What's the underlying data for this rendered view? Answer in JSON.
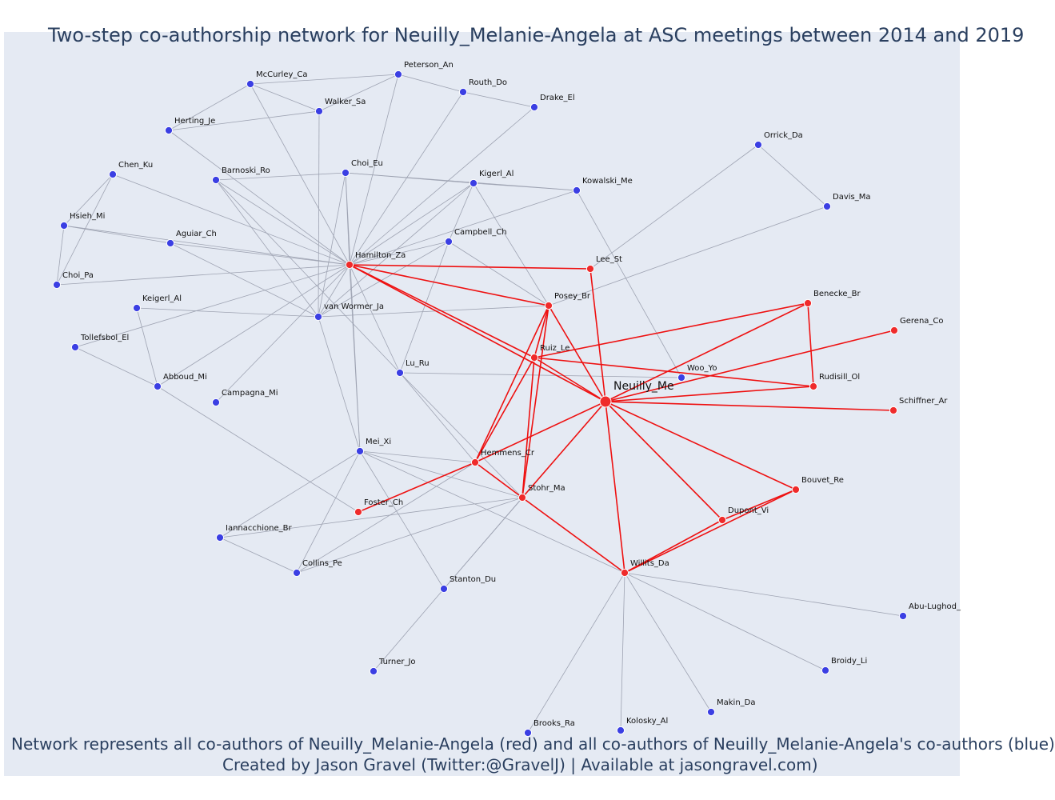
{
  "title": "Two-step co-authorship network for Neuilly_Melanie-Angela at ASC meetings between 2014 and 2019",
  "caption_line1": "Network represents all co-authors of Neuilly_Melanie-Angela (red) and all co-authors of Neuilly_Melanie-Angela's co-authors (blue)",
  "caption_line2": "Created by Jason Gravel (Twitter:@GravelJ) | Available at jasongravel.com)",
  "colors": {
    "plot_background": "#e5eaf3",
    "coauthor_node": "#ef2b2b",
    "second_step_node": "#3b3fe3",
    "coauthor_edge": "#ee1111",
    "second_step_edge": "#9ea3b2",
    "title_text": "#2a3f5f"
  },
  "chart_data": {
    "type": "network",
    "ego": "Neuilly_Me",
    "nodes": [
      {
        "id": "Neuilly_Me",
        "group": "ego"
      },
      {
        "id": "Hamilton_Za",
        "group": "coauthor"
      },
      {
        "id": "Lee_St",
        "group": "coauthor"
      },
      {
        "id": "Posey_Br",
        "group": "coauthor"
      },
      {
        "id": "Ruiz_Le",
        "group": "coauthor"
      },
      {
        "id": "Benecke_Br",
        "group": "coauthor"
      },
      {
        "id": "Gerena_Co",
        "group": "coauthor"
      },
      {
        "id": "Rudisill_Ol",
        "group": "coauthor"
      },
      {
        "id": "Schiffner_Ar",
        "group": "coauthor"
      },
      {
        "id": "Hemmens_Cr",
        "group": "coauthor"
      },
      {
        "id": "Stohr_Ma",
        "group": "coauthor"
      },
      {
        "id": "Foster_Ch",
        "group": "coauthor"
      },
      {
        "id": "Bouvet_Re",
        "group": "coauthor"
      },
      {
        "id": "Dupont_Vi",
        "group": "coauthor"
      },
      {
        "id": "Willits_Da",
        "group": "coauthor"
      },
      {
        "id": "McCurley_Ca",
        "group": "second"
      },
      {
        "id": "Peterson_An",
        "group": "second"
      },
      {
        "id": "Routh_Do",
        "group": "second"
      },
      {
        "id": "Walker_Sa",
        "group": "second"
      },
      {
        "id": "Drake_El",
        "group": "second"
      },
      {
        "id": "Herting_Je",
        "group": "second"
      },
      {
        "id": "Orrick_Da",
        "group": "second"
      },
      {
        "id": "Chen_Ku",
        "group": "second"
      },
      {
        "id": "Barnoski_Ro",
        "group": "second"
      },
      {
        "id": "Choi_Eu",
        "group": "second"
      },
      {
        "id": "Kigerl_Al",
        "group": "second"
      },
      {
        "id": "Kowalski_Me",
        "group": "second"
      },
      {
        "id": "Davis_Ma",
        "group": "second"
      },
      {
        "id": "Hsieh_Mi",
        "group": "second"
      },
      {
        "id": "Aguiar_Ch",
        "group": "second"
      },
      {
        "id": "Campbell_Ch",
        "group": "second"
      },
      {
        "id": "Choi_Pa",
        "group": "second"
      },
      {
        "id": "Keigerl_Al",
        "group": "second"
      },
      {
        "id": "van Wormer_Ja",
        "group": "second"
      },
      {
        "id": "Tollefsbol_El",
        "group": "second"
      },
      {
        "id": "Lu_Ru",
        "group": "second"
      },
      {
        "id": "Woo_Yo",
        "group": "second"
      },
      {
        "id": "Abboud_Mi",
        "group": "second"
      },
      {
        "id": "Campagna_Mi",
        "group": "second"
      },
      {
        "id": "Mei_Xi",
        "group": "second"
      },
      {
        "id": "Iannacchione_Br",
        "group": "second"
      },
      {
        "id": "Collins_Pe",
        "group": "second"
      },
      {
        "id": "Stanton_Du",
        "group": "second"
      },
      {
        "id": "Abu-Lughod_",
        "group": "second"
      },
      {
        "id": "Turner_Jo",
        "group": "second"
      },
      {
        "id": "Broidy_Li",
        "group": "second"
      },
      {
        "id": "Makin_Da",
        "group": "second"
      },
      {
        "id": "Brooks_Ra",
        "group": "second"
      },
      {
        "id": "Kolosky_Al",
        "group": "second"
      }
    ],
    "edges_red": [
      [
        "Neuilly_Me",
        "Hamilton_Za"
      ],
      [
        "Neuilly_Me",
        "Lee_St"
      ],
      [
        "Neuilly_Me",
        "Posey_Br"
      ],
      [
        "Neuilly_Me",
        "Ruiz_Le"
      ],
      [
        "Neuilly_Me",
        "Benecke_Br"
      ],
      [
        "Neuilly_Me",
        "Gerena_Co"
      ],
      [
        "Neuilly_Me",
        "Rudisill_Ol"
      ],
      [
        "Neuilly_Me",
        "Schiffner_Ar"
      ],
      [
        "Neuilly_Me",
        "Hemmens_Cr"
      ],
      [
        "Neuilly_Me",
        "Stohr_Ma"
      ],
      [
        "Neuilly_Me",
        "Bouvet_Re"
      ],
      [
        "Neuilly_Me",
        "Dupont_Vi"
      ],
      [
        "Neuilly_Me",
        "Willits_Da"
      ],
      [
        "Hamilton_Za",
        "Lee_St"
      ],
      [
        "Hamilton_Za",
        "Posey_Br"
      ],
      [
        "Hamilton_Za",
        "Ruiz_Le"
      ],
      [
        "Posey_Br",
        "Hemmens_Cr"
      ],
      [
        "Posey_Br",
        "Stohr_Ma"
      ],
      [
        "Posey_Br",
        "Ruiz_Le"
      ],
      [
        "Ruiz_Le",
        "Benecke_Br"
      ],
      [
        "Ruiz_Le",
        "Rudisill_Ol"
      ],
      [
        "Ruiz_Le",
        "Hemmens_Cr"
      ],
      [
        "Ruiz_Le",
        "Stohr_Ma"
      ],
      [
        "Benecke_Br",
        "Rudisill_Ol"
      ],
      [
        "Hemmens_Cr",
        "Foster_Ch"
      ],
      [
        "Hemmens_Cr",
        "Stohr_Ma"
      ],
      [
        "Stohr_Ma",
        "Willits_Da"
      ],
      [
        "Willits_Da",
        "Dupont_Vi"
      ],
      [
        "Willits_Da",
        "Bouvet_Re"
      ],
      [
        "Dupont_Vi",
        "Bouvet_Re"
      ]
    ],
    "edges_gray": [
      [
        "McCurley_Ca",
        "Peterson_An"
      ],
      [
        "McCurley_Ca",
        "Walker_Sa"
      ],
      [
        "McCurley_Ca",
        "Herting_Je"
      ],
      [
        "McCurley_Ca",
        "Hamilton_Za"
      ],
      [
        "Peterson_An",
        "Walker_Sa"
      ],
      [
        "Peterson_An",
        "Routh_Do"
      ],
      [
        "Peterson_An",
        "Hamilton_Za"
      ],
      [
        "Routh_Do",
        "Drake_El"
      ],
      [
        "Routh_Do",
        "Hamilton_Za"
      ],
      [
        "Walker_Sa",
        "Herting_Je"
      ],
      [
        "Walker_Sa",
        "van Wormer_Ja"
      ],
      [
        "Drake_El",
        "Hamilton_Za"
      ],
      [
        "Herting_Je",
        "Hamilton_Za"
      ],
      [
        "Chen_Ku",
        "Hsieh_Mi"
      ],
      [
        "Chen_Ku",
        "Choi_Pa"
      ],
      [
        "Chen_Ku",
        "Hamilton_Za"
      ],
      [
        "Hsieh_Mi",
        "Choi_Pa"
      ],
      [
        "Hsieh_Mi",
        "Hamilton_Za"
      ],
      [
        "Choi_Pa",
        "Hamilton_Za"
      ],
      [
        "Barnoski_Ro",
        "Choi_Eu"
      ],
      [
        "Barnoski_Ro",
        "Hamilton_Za"
      ],
      [
        "Barnoski_Ro",
        "van Wormer_Ja"
      ],
      [
        "Barnoski_Ro",
        "Lu_Ru"
      ],
      [
        "Choi_Eu",
        "Kigerl_Al"
      ],
      [
        "Choi_Eu",
        "Hamilton_Za"
      ],
      [
        "Choi_Eu",
        "van Wormer_Ja"
      ],
      [
        "Choi_Eu",
        "Mei_Xi"
      ],
      [
        "Kigerl_Al",
        "Kowalski_Me"
      ],
      [
        "Kigerl_Al",
        "Hamilton_Za"
      ],
      [
        "Kigerl_Al",
        "Posey_Br"
      ],
      [
        "Kigerl_Al",
        "Campbell_Ch"
      ],
      [
        "Kigerl_Al",
        "van Wormer_Ja"
      ],
      [
        "Kowalski_Me",
        "Hamilton_Za"
      ],
      [
        "Kowalski_Me",
        "Woo_Yo"
      ],
      [
        "Choi_Eu",
        "Kowalski_Me"
      ],
      [
        "Aguiar_Ch",
        "Hamilton_Za"
      ],
      [
        "Aguiar_Ch",
        "van Wormer_Ja"
      ],
      [
        "Aguiar_Ch",
        "Hsieh_Mi"
      ],
      [
        "Campbell_Ch",
        "Hamilton_Za"
      ],
      [
        "Campbell_Ch",
        "Posey_Br"
      ],
      [
        "Campbell_Ch",
        "Lu_Ru"
      ],
      [
        "Campbell_Ch",
        "van Wormer_Ja"
      ],
      [
        "Keigerl_Al",
        "van Wormer_Ja"
      ],
      [
        "Keigerl_Al",
        "Abboud_Mi"
      ],
      [
        "Tollefsbol_El",
        "Hamilton_Za"
      ],
      [
        "Tollefsbol_El",
        "Abboud_Mi"
      ],
      [
        "Abboud_Mi",
        "Hamilton_Za"
      ],
      [
        "Abboud_Mi",
        "Foster_Ch"
      ],
      [
        "Campagna_Mi",
        "Hamilton_Za"
      ],
      [
        "van Wormer_Ja",
        "Hamilton_Za"
      ],
      [
        "van Wormer_Ja",
        "Posey_Br"
      ],
      [
        "van Wormer_Ja",
        "Mei_Xi"
      ],
      [
        "Lu_Ru",
        "Hamilton_Za"
      ],
      [
        "Lu_Ru",
        "Woo_Yo"
      ],
      [
        "Lu_Ru",
        "Hemmens_Cr"
      ],
      [
        "Lu_Ru",
        "Stohr_Ma"
      ],
      [
        "Mei_Xi",
        "Hamilton_Za"
      ],
      [
        "Mei_Xi",
        "Hemmens_Cr"
      ],
      [
        "Mei_Xi",
        "Stohr_Ma"
      ],
      [
        "Mei_Xi",
        "Willits_Da"
      ],
      [
        "Mei_Xi",
        "Iannacchione_Br"
      ],
      [
        "Mei_Xi",
        "Collins_Pe"
      ],
      [
        "Mei_Xi",
        "Stanton_Du"
      ],
      [
        "Iannacchione_Br",
        "Stohr_Ma"
      ],
      [
        "Iannacchione_Br",
        "Collins_Pe"
      ],
      [
        "Collins_Pe",
        "Stohr_Ma"
      ],
      [
        "Collins_Pe",
        "Hemmens_Cr"
      ],
      [
        "Stanton_Du",
        "Stohr_Ma"
      ],
      [
        "Stanton_Du",
        "Turner_Jo"
      ],
      [
        "Stanton_Du",
        "Neuilly_Me"
      ],
      [
        "Orrick_Da",
        "Davis_Ma"
      ],
      [
        "Orrick_Da",
        "Lee_St"
      ],
      [
        "Davis_Ma",
        "Posey_Br"
      ],
      [
        "Willits_Da",
        "Abu-Lughod_"
      ],
      [
        "Willits_Da",
        "Broidy_Li"
      ],
      [
        "Willits_Da",
        "Makin_Da"
      ],
      [
        "Willits_Da",
        "Brooks_Ra"
      ],
      [
        "Willits_Da",
        "Kolosky_Al"
      ]
    ]
  }
}
